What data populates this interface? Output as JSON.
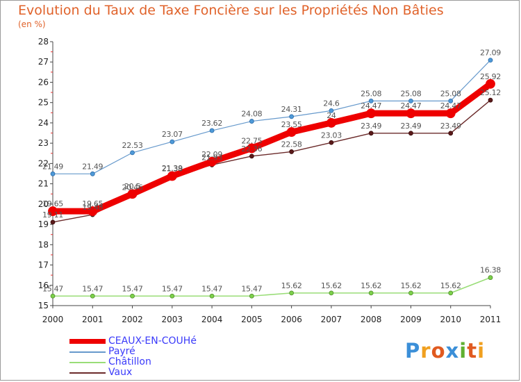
{
  "title": "Evolution du Taux de Taxe Foncière sur les Propriétés Non Bâties",
  "unit_label": "(en %)",
  "logo": {
    "letters": [
      "P",
      "r",
      "o",
      "x",
      "i",
      "t",
      "i"
    ],
    "colors": [
      "#3b8fd8",
      "#f0a020",
      "#e05a20",
      "#3b8fd8",
      "#60b030",
      "#e05a20",
      "#f0a020"
    ]
  },
  "chart_data": {
    "type": "line",
    "title": "Evolution du Taux de Taxe Foncière sur les Propriétés Non Bâties",
    "ylabel": "(en %)",
    "xlabel": "",
    "x": [
      "2000",
      "2001",
      "2002",
      "2003",
      "2004",
      "2005",
      "2006",
      "2007",
      "2008",
      "2009",
      "2010",
      "2011"
    ],
    "ylim": [
      15,
      28
    ],
    "yticks": [
      "15",
      "16",
      "17",
      "18",
      "19",
      "20",
      "21",
      "22",
      "23",
      "24",
      "25",
      "26",
      "27",
      "28"
    ],
    "grid": false,
    "series": [
      {
        "name": "CEAUX-EN-COUHé",
        "color": "#ee0000",
        "values": [
          19.65,
          19.65,
          20.5,
          21.38,
          22.09,
          22.75,
          23.55,
          24.0,
          24.47,
          24.47,
          24.47,
          25.92
        ],
        "labels": [
          "19.65",
          "19.65",
          "20.5",
          "21.38",
          "22.09",
          "22.75",
          "23.55",
          "24",
          "24.47",
          "24.47",
          "24.47",
          "25.92"
        ]
      },
      {
        "name": "Payré",
        "color": "#6699cc",
        "values": [
          21.49,
          21.49,
          22.53,
          23.07,
          23.62,
          24.08,
          24.31,
          24.6,
          25.08,
          25.08,
          25.08,
          27.09
        ],
        "labels": [
          "21.49",
          "21.49",
          "22.53",
          "23.07",
          "23.62",
          "24.08",
          "24.31",
          "24.6",
          "25.08",
          "25.08",
          "25.08",
          "27.09"
        ]
      },
      {
        "name": "Châtillon",
        "color": "#99dd77",
        "values": [
          15.47,
          15.47,
          15.47,
          15.47,
          15.47,
          15.47,
          15.62,
          15.62,
          15.62,
          15.62,
          15.62,
          16.38
        ],
        "labels": [
          "15.47",
          "15.47",
          "15.47",
          "15.47",
          "15.47",
          "15.47",
          "15.62",
          "15.62",
          "15.62",
          "15.62",
          "15.62",
          "16.38"
        ]
      },
      {
        "name": "Vaux",
        "color": "#6b2a2a",
        "values": [
          19.11,
          19.48,
          20.46,
          21.39,
          21.93,
          22.36,
          22.58,
          23.03,
          23.49,
          23.49,
          23.49,
          25.12
        ],
        "labels": [
          "19.11",
          "19.48",
          "20.46",
          "21.39",
          "21.93",
          "22.36",
          "22.58",
          "23.03",
          "23.49",
          "23.49",
          "23.49",
          "25.12"
        ]
      }
    ]
  }
}
